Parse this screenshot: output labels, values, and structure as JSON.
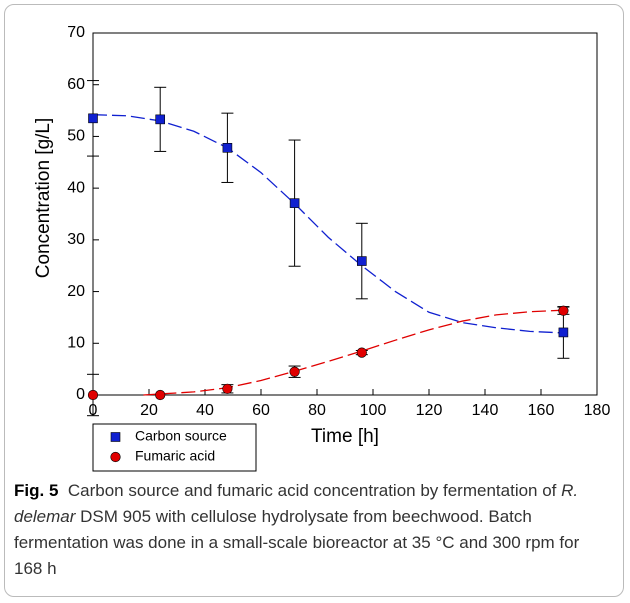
{
  "chart_data": {
    "type": "scatter",
    "x_label": "Time [h]",
    "y_label": "Concentration [g/L]",
    "xlim": [
      0,
      180
    ],
    "xticks": [
      0,
      20,
      40,
      60,
      80,
      100,
      120,
      140,
      160,
      180
    ],
    "ylim": [
      0,
      70
    ],
    "yticks": [
      0,
      10,
      20,
      30,
      40,
      50,
      60,
      70
    ],
    "legend": "bottom-left",
    "series": [
      {
        "name": "Carbon source",
        "color": "#1020d0",
        "marker": "square",
        "x": [
          0,
          24,
          48,
          72,
          96,
          168
        ],
        "values": [
          53.5,
          53.3,
          47.8,
          37.1,
          25.9,
          12.1
        ],
        "errors": [
          7.3,
          6.2,
          6.7,
          12.2,
          7.3,
          5
        ],
        "fit": {
          "x": [
            0,
            12,
            24,
            36,
            48,
            60,
            72,
            84,
            96,
            108,
            120,
            132,
            144,
            156,
            168
          ],
          "values": [
            54.2,
            54,
            53,
            51,
            47.8,
            43,
            37,
            30.5,
            25,
            20,
            16,
            14,
            13,
            12.3,
            12
          ]
        }
      },
      {
        "name": "Fumaric acid",
        "color": "#e00000",
        "marker": "circle",
        "x": [
          0,
          24,
          48,
          72,
          96,
          168
        ],
        "values": [
          0,
          0,
          1.2,
          4.5,
          8.2,
          16.3
        ],
        "errors": [
          4,
          0,
          0.8,
          1.1,
          0.4,
          0.7
        ],
        "fit": {
          "x": [
            18,
            24,
            36,
            48,
            60,
            72,
            84,
            96,
            108,
            120,
            132,
            144,
            156,
            168
          ],
          "values": [
            0,
            0.2,
            0.6,
            1.4,
            2.8,
            4.6,
            6.5,
            8.5,
            10.6,
            12.6,
            14.3,
            15.5,
            16.1,
            16.4
          ]
        }
      }
    ]
  },
  "caption": {
    "label": "Fig. 5",
    "text_before": "Carbon source and fumaric acid concentration by fermentation of",
    "italic": "R. delemar",
    "text_after": "DSM 905 with cellulose hydrolysate from beechwood. Batch fermentation was done in a small-scale bioreactor at 35 °C and 300 rpm for 168 h"
  }
}
